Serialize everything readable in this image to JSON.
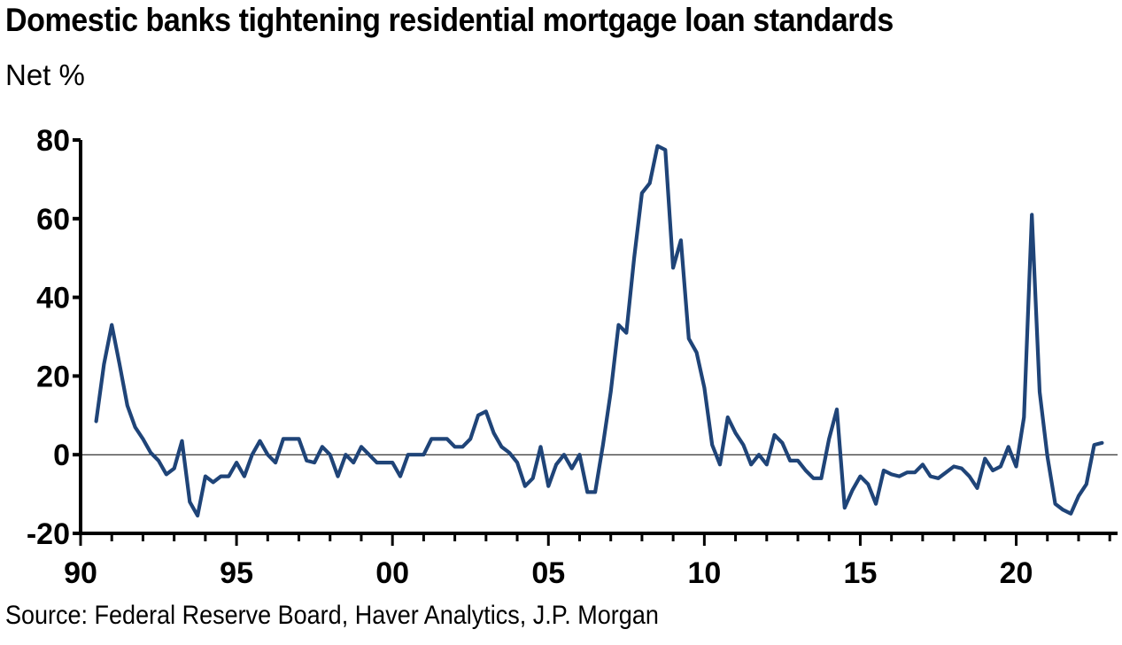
{
  "title": "Domestic banks tightening residential mortgage loan standards",
  "unit_label": "Net %",
  "source": "Source: Federal Reserve Board, Haver Analytics, J.P. Morgan",
  "line_color": "#1f4478",
  "chart_data": {
    "type": "line",
    "title": "Domestic banks tightening residential mortgage loan standards",
    "ylabel": "Net %",
    "xlabel": "",
    "ylim": [
      -20,
      80
    ],
    "xlim": [
      1990,
      2023.25
    ],
    "y_ticks": [
      {
        "value": -20,
        "label": "-20"
      },
      {
        "value": 0,
        "label": "0"
      },
      {
        "value": 20,
        "label": "20"
      },
      {
        "value": 40,
        "label": "40"
      },
      {
        "value": 60,
        "label": "60"
      },
      {
        "value": 80,
        "label": "80"
      }
    ],
    "x_ticks": [
      {
        "value": 1990,
        "label": "90"
      },
      {
        "value": 1995,
        "label": "95"
      },
      {
        "value": 2000,
        "label": "00"
      },
      {
        "value": 2005,
        "label": "05"
      },
      {
        "value": 2010,
        "label": "10"
      },
      {
        "value": 2015,
        "label": "15"
      },
      {
        "value": 2020,
        "label": "20"
      }
    ],
    "zero_line": true,
    "series": [
      {
        "values": [
          [
            1990.5,
            8.5
          ],
          [
            1990.75,
            23
          ],
          [
            1991.0,
            33
          ],
          [
            1991.25,
            23
          ],
          [
            1991.5,
            12.5
          ],
          [
            1991.75,
            7
          ],
          [
            1992.0,
            4
          ],
          [
            1992.25,
            0.5
          ],
          [
            1992.5,
            -1.5
          ],
          [
            1992.75,
            -5
          ],
          [
            1993.0,
            -3.5
          ],
          [
            1993.25,
            3.5
          ],
          [
            1993.5,
            -12
          ],
          [
            1993.75,
            -15.5
          ],
          [
            1994.0,
            -5.5
          ],
          [
            1994.25,
            -7
          ],
          [
            1994.5,
            -5.5
          ],
          [
            1994.75,
            -5.5
          ],
          [
            1995.0,
            -2
          ],
          [
            1995.25,
            -5.5
          ],
          [
            1995.5,
            0
          ],
          [
            1995.75,
            3.5
          ],
          [
            1996.0,
            0
          ],
          [
            1996.25,
            -2
          ],
          [
            1996.5,
            4
          ],
          [
            1996.75,
            4
          ],
          [
            1997.0,
            4
          ],
          [
            1997.25,
            -1.5
          ],
          [
            1997.5,
            -2
          ],
          [
            1997.75,
            2
          ],
          [
            1998.0,
            0
          ],
          [
            1998.25,
            -5.5
          ],
          [
            1998.5,
            0
          ],
          [
            1998.75,
            -2
          ],
          [
            1999.0,
            2
          ],
          [
            1999.25,
            0
          ],
          [
            1999.5,
            -2
          ],
          [
            1999.75,
            -2
          ],
          [
            2000.0,
            -2
          ],
          [
            2000.25,
            -5.5
          ],
          [
            2000.5,
            0
          ],
          [
            2000.75,
            0
          ],
          [
            2001.0,
            0
          ],
          [
            2001.25,
            4
          ],
          [
            2001.5,
            4
          ],
          [
            2001.75,
            4
          ],
          [
            2002.0,
            2
          ],
          [
            2002.25,
            2
          ],
          [
            2002.5,
            4
          ],
          [
            2002.75,
            10
          ],
          [
            2003.0,
            11
          ],
          [
            2003.25,
            5.5
          ],
          [
            2003.5,
            2
          ],
          [
            2003.75,
            0.5
          ],
          [
            2004.0,
            -2
          ],
          [
            2004.25,
            -8
          ],
          [
            2004.5,
            -6
          ],
          [
            2004.75,
            2
          ],
          [
            2005.0,
            -8
          ],
          [
            2005.25,
            -2.5
          ],
          [
            2005.5,
            0
          ],
          [
            2005.75,
            -3.5
          ],
          [
            2006.0,
            0
          ],
          [
            2006.25,
            -9.5
          ],
          [
            2006.5,
            -9.5
          ],
          [
            2006.75,
            2.5
          ],
          [
            2007.0,
            16
          ],
          [
            2007.25,
            33
          ],
          [
            2007.5,
            31
          ],
          [
            2007.75,
            50
          ],
          [
            2008.0,
            66.5
          ],
          [
            2008.25,
            69
          ],
          [
            2008.5,
            78.5
          ],
          [
            2008.75,
            77.5
          ],
          [
            2009.0,
            47.5
          ],
          [
            2009.25,
            54.5
          ],
          [
            2009.5,
            29.5
          ],
          [
            2009.75,
            26
          ],
          [
            2010.0,
            17
          ],
          [
            2010.25,
            2.5
          ],
          [
            2010.5,
            -2.5
          ],
          [
            2010.75,
            9.5
          ],
          [
            2011.0,
            5.5
          ],
          [
            2011.25,
            2.5
          ],
          [
            2011.5,
            -2.5
          ],
          [
            2011.75,
            0
          ],
          [
            2012.0,
            -2.5
          ],
          [
            2012.25,
            5
          ],
          [
            2012.5,
            3
          ],
          [
            2012.75,
            -1.5
          ],
          [
            2013.0,
            -1.5
          ],
          [
            2013.25,
            -4
          ],
          [
            2013.5,
            -6
          ],
          [
            2013.75,
            -6
          ],
          [
            2014.0,
            4
          ],
          [
            2014.25,
            11.5
          ],
          [
            2014.5,
            -13.5
          ],
          [
            2014.75,
            -9
          ],
          [
            2015.0,
            -5.5
          ],
          [
            2015.25,
            -7.5
          ],
          [
            2015.5,
            -12.5
          ],
          [
            2015.75,
            -4
          ],
          [
            2016.0,
            -5
          ],
          [
            2016.25,
            -5.5
          ],
          [
            2016.5,
            -4.5
          ],
          [
            2016.75,
            -4.5
          ],
          [
            2017.0,
            -2.5
          ],
          [
            2017.25,
            -5.5
          ],
          [
            2017.5,
            -6
          ],
          [
            2017.75,
            -4.5
          ],
          [
            2018.0,
            -3
          ],
          [
            2018.25,
            -3.5
          ],
          [
            2018.5,
            -5.5
          ],
          [
            2018.75,
            -8.5
          ],
          [
            2019.0,
            -1
          ],
          [
            2019.25,
            -4
          ],
          [
            2019.5,
            -3
          ],
          [
            2019.75,
            2
          ],
          [
            2020.0,
            -3
          ],
          [
            2020.25,
            9.5
          ],
          [
            2020.5,
            61
          ],
          [
            2020.75,
            16
          ],
          [
            2021.0,
            -0.5
          ],
          [
            2021.25,
            -12.5
          ],
          [
            2021.5,
            -14
          ],
          [
            2021.75,
            -15
          ],
          [
            2022.0,
            -10.5
          ],
          [
            2022.25,
            -7.5
          ],
          [
            2022.5,
            2.5
          ],
          [
            2022.75,
            3
          ]
        ]
      }
    ]
  }
}
